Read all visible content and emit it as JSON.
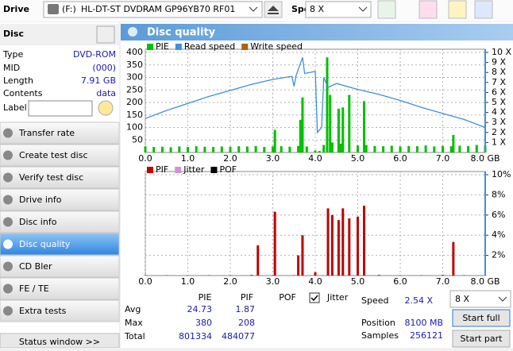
{
  "toolbar": {
    "drive_label": "Drive",
    "drive_letter": "(F:)",
    "drive_name": "HL-DT-ST DVDRAM GP96YB70 RF01",
    "speed_label": "Speed",
    "speed_value": "8 X"
  },
  "disc": {
    "title": "Disc",
    "rows": [
      [
        "Type",
        "DVD-ROM"
      ],
      [
        "MID",
        "(000)"
      ],
      [
        "Length",
        "7.91 GB"
      ],
      [
        "Contents",
        "data"
      ]
    ],
    "label_field": "Label"
  },
  "nav": {
    "items": [
      "Transfer rate",
      "Create test disc",
      "Verify test disc",
      "Drive info",
      "Disc info",
      "Disc quality",
      "CD Bler",
      "FE / TE",
      "Extra tests"
    ],
    "selected": 5
  },
  "status_button": "Status window >>",
  "panel_title": "Disc quality",
  "chart_data": [
    {
      "type": "combo",
      "grid": true,
      "xlim": [
        0,
        8
      ],
      "xticks": [
        {
          "value": 0,
          "label": "0.0"
        },
        {
          "value": 1,
          "label": "1.0"
        },
        {
          "value": 2,
          "label": "2.0"
        },
        {
          "value": 3,
          "label": "3.0"
        },
        {
          "value": 4,
          "label": "4.0"
        },
        {
          "value": 5,
          "label": "5.0"
        },
        {
          "value": 6,
          "label": "6.0"
        },
        {
          "value": 7,
          "label": "7.0"
        },
        {
          "value": 8,
          "label": "8.0 GB"
        }
      ],
      "ylim": [
        0,
        400
      ],
      "yticks": [
        50,
        100,
        150,
        200,
        250,
        300,
        350,
        400
      ],
      "y2lim": [
        0,
        10
      ],
      "y2ticks": [
        {
          "value": 1,
          "label": "1 X"
        },
        {
          "value": 2,
          "label": "2 X"
        },
        {
          "value": 3,
          "label": "3 X"
        },
        {
          "value": 4,
          "label": "4 X"
        },
        {
          "value": 5,
          "label": "5 X"
        },
        {
          "value": 6,
          "label": "6 X"
        },
        {
          "value": 7,
          "label": "7 X"
        },
        {
          "value": 8,
          "label": "8 X"
        },
        {
          "value": 9,
          "label": "9 X"
        },
        {
          "value": 10,
          "label": "10 X"
        }
      ],
      "series": [
        {
          "name": "PIE",
          "color": "#00c000",
          "type": "bar",
          "x": [
            0,
            0.2,
            0.4,
            0.6,
            0.8,
            1,
            1.2,
            1.4,
            1.6,
            1.8,
            2,
            2.2,
            2.4,
            2.6,
            2.8,
            3,
            3.05,
            3.2,
            3.4,
            3.6,
            3.65,
            3.7,
            3.8,
            4,
            4.1,
            4.2,
            4.28,
            4.35,
            4.4,
            4.55,
            4.6,
            4.65,
            4.8,
            5,
            5.15,
            5.2,
            5.4,
            5.6,
            5.8,
            6,
            6.2,
            6.4,
            6.6,
            6.8,
            7,
            7.2,
            7.25,
            7.4,
            7.6,
            7.8,
            8
          ],
          "values": [
            24,
            22,
            23,
            21,
            24,
            22,
            25,
            23,
            22,
            24,
            23,
            25,
            24,
            26,
            22,
            24,
            90,
            25,
            23,
            26,
            130,
            220,
            24,
            8,
            6,
            30,
            380,
            230,
            40,
            175,
            35,
            180,
            230,
            28,
            205,
            30,
            26,
            25,
            27,
            24,
            26,
            25,
            28,
            24,
            26,
            25,
            70,
            27,
            26,
            30,
            28
          ]
        },
        {
          "name": "Read speed",
          "color": "#3d8fe0",
          "type": "line",
          "axis": "y2",
          "x": [
            0,
            0.5,
            1,
            1.5,
            2,
            2.5,
            3,
            3.45,
            3.5,
            3.55,
            3.7,
            3.75,
            4,
            4.05,
            4.15,
            4.2,
            4.3,
            4.5,
            5,
            5.5,
            6,
            6.5,
            7,
            7.5,
            8
          ],
          "values": [
            3.4,
            4.2,
            4.9,
            5.6,
            6.2,
            6.8,
            7.3,
            7.6,
            6.6,
            7.7,
            9.5,
            7.9,
            8.1,
            2,
            2.5,
            7.5,
            6.5,
            6.9,
            6.3,
            5.8,
            5.2,
            4.5,
            3.9,
            3.3,
            2.5
          ]
        },
        {
          "name": "Write speed",
          "color": "#b06010",
          "type": "line",
          "axis": "y2"
        }
      ]
    },
    {
      "type": "combo",
      "grid": true,
      "xlim": [
        0,
        8
      ],
      "xticks": [
        {
          "value": 0,
          "label": "0.0"
        },
        {
          "value": 1,
          "label": "1.0"
        },
        {
          "value": 2,
          "label": "2.0"
        },
        {
          "value": 3,
          "label": "3.0"
        },
        {
          "value": 4,
          "label": "4.0"
        },
        {
          "value": 5,
          "label": "5.0"
        },
        {
          "value": 6,
          "label": "6.0"
        },
        {
          "value": 7,
          "label": "7.0"
        },
        {
          "value": 8,
          "label": "8.0 GB"
        }
      ],
      "ylim": [
        0,
        300
      ],
      "y2lim": [
        0,
        10
      ],
      "y2ticks": [
        {
          "value": 2,
          "label": "2%"
        },
        {
          "value": 4,
          "label": "4%"
        },
        {
          "value": 6,
          "label": "6%"
        },
        {
          "value": 8,
          "label": "8%"
        },
        {
          "value": 10,
          "label": "10%"
        }
      ],
      "series": [
        {
          "name": "PIF",
          "color": "#c00000",
          "type": "bar",
          "x": [
            0,
            0.5,
            1,
            1.5,
            2,
            2.5,
            2.65,
            3,
            3.05,
            3.5,
            3.6,
            3.7,
            4,
            4.3,
            4.4,
            4.55,
            4.65,
            4.8,
            5,
            5.15,
            5.5,
            6,
            6.5,
            7,
            7.25,
            7.5,
            8
          ],
          "values": [
            1,
            1,
            1,
            1,
            1,
            2,
            90,
            1,
            190,
            1,
            60,
            120,
            10,
            200,
            180,
            165,
            200,
            170,
            175,
            208,
            2,
            1,
            1,
            2,
            100,
            1,
            1
          ]
        },
        {
          "name": "Jitter",
          "color": "#d890d8",
          "type": "line",
          "axis": "y2"
        },
        {
          "name": "POF",
          "color": "#000000",
          "type": "bar"
        }
      ]
    }
  ],
  "stats": {
    "headers": [
      "PIE",
      "PIF",
      "POF",
      "Jitter"
    ],
    "rows": [
      [
        "Avg",
        24.73,
        1.87
      ],
      [
        "Max",
        380,
        208
      ],
      [
        "Total",
        801334,
        484077
      ]
    ],
    "speed_label": "Speed",
    "speed": "2.54 X",
    "position_label": "Position",
    "position": "8100 MB",
    "samples_label": "Samples",
    "samples": 256121,
    "speed_select": "8 X",
    "start_full": "Start full",
    "start_part": "Start part"
  }
}
